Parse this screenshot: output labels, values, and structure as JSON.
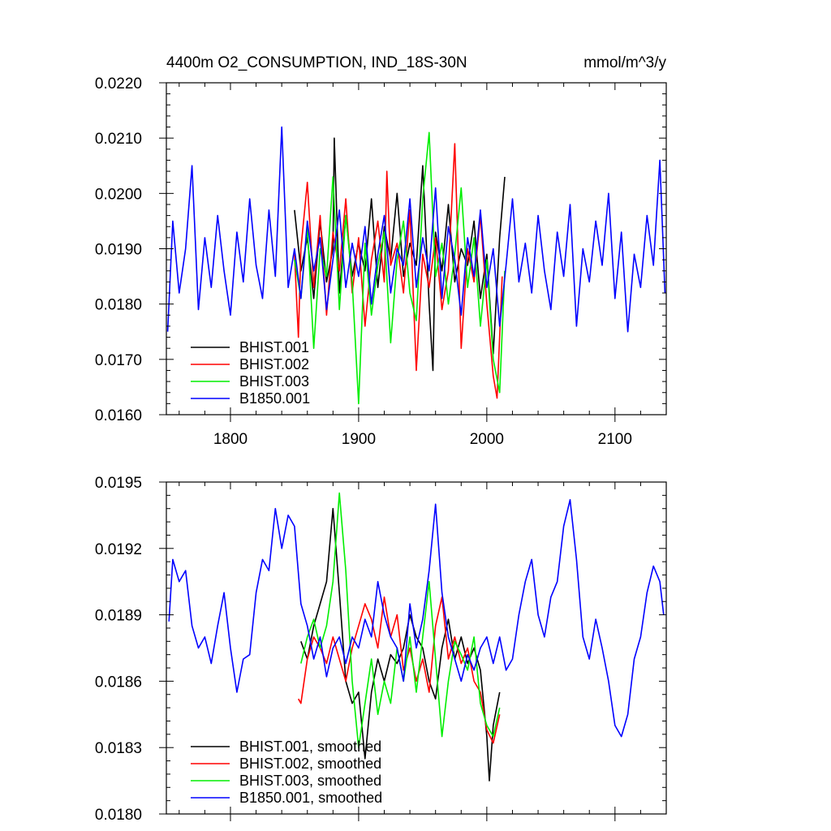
{
  "chart_data": [
    {
      "type": "line",
      "title_left": "4400m O2_CONSUMPTION, IND_18S-30N",
      "title_right": "mmol/m^3/y",
      "xlabel": "",
      "ylabel": "",
      "xlim": [
        1750,
        2140
      ],
      "ylim": [
        0.016,
        0.022
      ],
      "x_ticks": [
        1800,
        1900,
        2000,
        2100
      ],
      "x_tick_labels": [
        "1800",
        "1900",
        "2000",
        "2100"
      ],
      "y_ticks": [
        0.016,
        0.017,
        0.018,
        0.019,
        0.02,
        0.021,
        0.022
      ],
      "y_tick_labels": [
        "0.0160",
        "0.0170",
        "0.0180",
        "0.0190",
        "0.0200",
        "0.0210",
        "0.0220"
      ],
      "legend_position": "bottom-left",
      "grid": false,
      "series": [
        {
          "name": "BHIST.001",
          "color": "#000000",
          "x": [
            1850,
            1855,
            1860,
            1865,
            1870,
            1875,
            1880,
            1881,
            1885,
            1890,
            1895,
            1900,
            1905,
            1910,
            1915,
            1920,
            1925,
            1930,
            1935,
            1940,
            1945,
            1950,
            1955,
            1958,
            1960,
            1965,
            1970,
            1975,
            1980,
            1985,
            1990,
            1995,
            2000,
            2005,
            2010,
            2014
          ],
          "values": [
            0.0197,
            0.0186,
            0.0192,
            0.0181,
            0.0195,
            0.0184,
            0.019,
            0.021,
            0.0182,
            0.0196,
            0.0185,
            0.0191,
            0.0186,
            0.0199,
            0.0183,
            0.0194,
            0.0188,
            0.02,
            0.0185,
            0.0191,
            0.0187,
            0.0205,
            0.018,
            0.0168,
            0.0193,
            0.0186,
            0.0198,
            0.0184,
            0.019,
            0.0187,
            0.0195,
            0.0181,
            0.0189,
            0.0171,
            0.0192,
            0.0203
          ]
        },
        {
          "name": "BHIST.002",
          "color": "#ff0000",
          "x": [
            1850,
            1853,
            1855,
            1860,
            1865,
            1870,
            1875,
            1880,
            1885,
            1890,
            1895,
            1900,
            1905,
            1910,
            1915,
            1920,
            1922,
            1925,
            1930,
            1935,
            1940,
            1945,
            1950,
            1955,
            1960,
            1965,
            1970,
            1975,
            1980,
            1985,
            1990,
            1995,
            2000,
            2005,
            2008,
            2012
          ],
          "values": [
            0.0189,
            0.0174,
            0.019,
            0.0202,
            0.0183,
            0.0196,
            0.0178,
            0.0193,
            0.0186,
            0.0199,
            0.0182,
            0.0192,
            0.0176,
            0.0188,
            0.0195,
            0.0184,
            0.0204,
            0.0187,
            0.0191,
            0.0182,
            0.0197,
            0.0168,
            0.0189,
            0.0183,
            0.0192,
            0.0179,
            0.0186,
            0.0209,
            0.0172,
            0.019,
            0.0184,
            0.0196,
            0.018,
            0.0167,
            0.0163,
            0.0185
          ]
        },
        {
          "name": "BHIST.003",
          "color": "#00ee00",
          "x": [
            1850,
            1855,
            1860,
            1865,
            1870,
            1875,
            1880,
            1885,
            1890,
            1895,
            1900,
            1905,
            1910,
            1915,
            1920,
            1925,
            1930,
            1935,
            1940,
            1945,
            1950,
            1955,
            1960,
            1965,
            1970,
            1975,
            1980,
            1985,
            1990,
            1995,
            2000,
            2005,
            2010,
            2014
          ],
          "values": [
            0.0188,
            0.0181,
            0.0194,
            0.0172,
            0.019,
            0.0185,
            0.0203,
            0.0179,
            0.0196,
            0.0184,
            0.0162,
            0.0191,
            0.0178,
            0.0187,
            0.0193,
            0.0173,
            0.0188,
            0.0195,
            0.0182,
            0.0177,
            0.0199,
            0.0211,
            0.0185,
            0.0191,
            0.018,
            0.0189,
            0.0201,
            0.0183,
            0.0192,
            0.0176,
            0.0188,
            0.017,
            0.0164,
            0.0186
          ]
        },
        {
          "name": "B1850.001",
          "color": "#0000ff",
          "x": [
            1751,
            1755,
            1760,
            1765,
            1770,
            1775,
            1780,
            1785,
            1790,
            1795,
            1800,
            1805,
            1810,
            1815,
            1820,
            1825,
            1830,
            1835,
            1840,
            1845,
            1850,
            1855,
            1860,
            1865,
            1870,
            1875,
            1880,
            1885,
            1890,
            1895,
            1900,
            1905,
            1910,
            1915,
            1920,
            1925,
            1930,
            1935,
            1940,
            1945,
            1950,
            1955,
            1960,
            1965,
            1970,
            1975,
            1980,
            1985,
            1990,
            1995,
            2000,
            2005,
            2010,
            2015,
            2020,
            2025,
            2030,
            2035,
            2040,
            2045,
            2050,
            2055,
            2060,
            2065,
            2070,
            2075,
            2080,
            2085,
            2090,
            2095,
            2100,
            2105,
            2110,
            2115,
            2120,
            2125,
            2130,
            2135,
            2139
          ],
          "values": [
            0.0175,
            0.0195,
            0.0182,
            0.019,
            0.0205,
            0.0179,
            0.0192,
            0.0183,
            0.0196,
            0.0186,
            0.0178,
            0.0193,
            0.0184,
            0.0199,
            0.0187,
            0.0181,
            0.0197,
            0.0185,
            0.0212,
            0.0183,
            0.019,
            0.0181,
            0.0195,
            0.0186,
            0.0192,
            0.0179,
            0.0188,
            0.0197,
            0.0183,
            0.0191,
            0.0185,
            0.0194,
            0.018,
            0.0189,
            0.0196,
            0.0182,
            0.019,
            0.0187,
            0.0199,
            0.0183,
            0.0192,
            0.0186,
            0.0201,
            0.0181,
            0.0194,
            0.0188,
            0.0178,
            0.0192,
            0.0185,
            0.0197,
            0.0183,
            0.019,
            0.0176,
            0.0187,
            0.0199,
            0.0184,
            0.0191,
            0.0182,
            0.0196,
            0.0186,
            0.0179,
            0.0193,
            0.0185,
            0.0198,
            0.0176,
            0.019,
            0.0184,
            0.0195,
            0.0187,
            0.02,
            0.0181,
            0.0193,
            0.0175,
            0.0189,
            0.0183,
            0.0196,
            0.0187,
            0.0206,
            0.0182
          ]
        }
      ]
    },
    {
      "type": "line",
      "title_left": "",
      "title_right": "",
      "xlabel": "",
      "ylabel": "",
      "xlim": [
        1750,
        2140
      ],
      "ylim": [
        0.018,
        0.0195
      ],
      "x_ticks": [
        1800,
        1900,
        2000,
        2100
      ],
      "x_tick_labels": [],
      "y_ticks": [
        0.018,
        0.0183,
        0.0186,
        0.0189,
        0.0192,
        0.0195
      ],
      "y_tick_labels": [
        "0.0180",
        "0.0183",
        "0.0186",
        "0.0189",
        "0.0192",
        "0.0195"
      ],
      "legend_position": "bottom-left",
      "grid": false,
      "series": [
        {
          "name": "BHIST.001, smoothed",
          "color": "#000000",
          "x": [
            1855,
            1860,
            1865,
            1870,
            1875,
            1880,
            1885,
            1890,
            1895,
            1900,
            1905,
            1910,
            1915,
            1920,
            1925,
            1930,
            1935,
            1940,
            1945,
            1950,
            1955,
            1960,
            1965,
            1970,
            1975,
            1980,
            1985,
            1990,
            1995,
            2000,
            2002,
            2005,
            2010
          ],
          "values": [
            0.01878,
            0.0187,
            0.01885,
            0.01895,
            0.01905,
            0.01938,
            0.019,
            0.0186,
            0.0185,
            0.01855,
            0.01825,
            0.01855,
            0.0187,
            0.0186,
            0.01872,
            0.01868,
            0.01875,
            0.0189,
            0.0188,
            0.01875,
            0.0186,
            0.01852,
            0.01875,
            0.01888,
            0.0187,
            0.0188,
            0.01868,
            0.01875,
            0.01865,
            0.01835,
            0.01815,
            0.0184,
            0.01855
          ]
        },
        {
          "name": "BHIST.002, smoothed",
          "color": "#ff0000",
          "x": [
            1853,
            1855,
            1860,
            1865,
            1870,
            1875,
            1880,
            1885,
            1890,
            1895,
            1900,
            1905,
            1910,
            1915,
            1920,
            1925,
            1930,
            1935,
            1940,
            1945,
            1950,
            1955,
            1960,
            1965,
            1970,
            1975,
            1980,
            1985,
            1990,
            1995,
            2000,
            2005,
            2010
          ],
          "values": [
            0.01852,
            0.0185,
            0.0187,
            0.0188,
            0.01875,
            0.01868,
            0.0188,
            0.0187,
            0.0186,
            0.01875,
            0.01885,
            0.01895,
            0.01888,
            0.01875,
            0.01898,
            0.0188,
            0.0189,
            0.01865,
            0.01875,
            0.0186,
            0.0187,
            0.01855,
            0.01885,
            0.01898,
            0.0187,
            0.0188,
            0.01868,
            0.01875,
            0.0186,
            0.01855,
            0.01838,
            0.01832,
            0.01845
          ]
        },
        {
          "name": "BHIST.003, smoothed",
          "color": "#00ee00",
          "x": [
            1855,
            1860,
            1865,
            1870,
            1875,
            1880,
            1885,
            1890,
            1895,
            1900,
            1905,
            1910,
            1915,
            1920,
            1925,
            1930,
            1935,
            1940,
            1945,
            1950,
            1955,
            1960,
            1965,
            1970,
            1975,
            1980,
            1985,
            1990,
            1995,
            2000,
            2005,
            2010
          ],
          "values": [
            0.01868,
            0.0188,
            0.01888,
            0.01875,
            0.01885,
            0.01905,
            0.01945,
            0.0191,
            0.0186,
            0.0183,
            0.0185,
            0.0187,
            0.01845,
            0.0186,
            0.0185,
            0.01875,
            0.0186,
            0.0188,
            0.01855,
            0.0188,
            0.01905,
            0.0187,
            0.01835,
            0.0186,
            0.01878,
            0.01872,
            0.01865,
            0.0188,
            0.0185,
            0.0184,
            0.01835,
            0.01848
          ]
        },
        {
          "name": "B1850.001, smoothed",
          "color": "#0000ff",
          "x": [
            1752,
            1755,
            1760,
            1765,
            1770,
            1775,
            1780,
            1785,
            1790,
            1795,
            1800,
            1805,
            1810,
            1815,
            1820,
            1825,
            1830,
            1835,
            1840,
            1845,
            1850,
            1855,
            1860,
            1865,
            1870,
            1875,
            1880,
            1885,
            1890,
            1895,
            1900,
            1905,
            1910,
            1915,
            1920,
            1925,
            1930,
            1935,
            1940,
            1945,
            1950,
            1955,
            1960,
            1965,
            1970,
            1975,
            1980,
            1985,
            1990,
            1995,
            2000,
            2005,
            2010,
            2015,
            2020,
            2025,
            2030,
            2035,
            2040,
            2045,
            2050,
            2055,
            2060,
            2065,
            2070,
            2075,
            2080,
            2085,
            2090,
            2095,
            2100,
            2105,
            2110,
            2115,
            2120,
            2125,
            2130,
            2135,
            2138
          ],
          "values": [
            0.01887,
            0.01915,
            0.01905,
            0.0191,
            0.01885,
            0.01875,
            0.0188,
            0.01868,
            0.01885,
            0.019,
            0.01875,
            0.01855,
            0.0187,
            0.01872,
            0.019,
            0.01915,
            0.0191,
            0.01938,
            0.0192,
            0.01935,
            0.0193,
            0.01895,
            0.01885,
            0.0187,
            0.0188,
            0.01862,
            0.01875,
            0.0188,
            0.01868,
            0.0188,
            0.01875,
            0.01888,
            0.0188,
            0.01905,
            0.0189,
            0.0188,
            0.01875,
            0.0186,
            0.01895,
            0.01875,
            0.01888,
            0.0191,
            0.0194,
            0.019,
            0.0188,
            0.0187,
            0.0186,
            0.01872,
            0.01865,
            0.01875,
            0.0188,
            0.01868,
            0.0188,
            0.01865,
            0.0187,
            0.0189,
            0.01905,
            0.01915,
            0.0189,
            0.0188,
            0.01898,
            0.01905,
            0.0193,
            0.01942,
            0.01915,
            0.0188,
            0.0187,
            0.01888,
            0.01875,
            0.0186,
            0.0184,
            0.01835,
            0.01845,
            0.0187,
            0.0188,
            0.019,
            0.01912,
            0.01905,
            0.0189
          ]
        }
      ]
    }
  ]
}
